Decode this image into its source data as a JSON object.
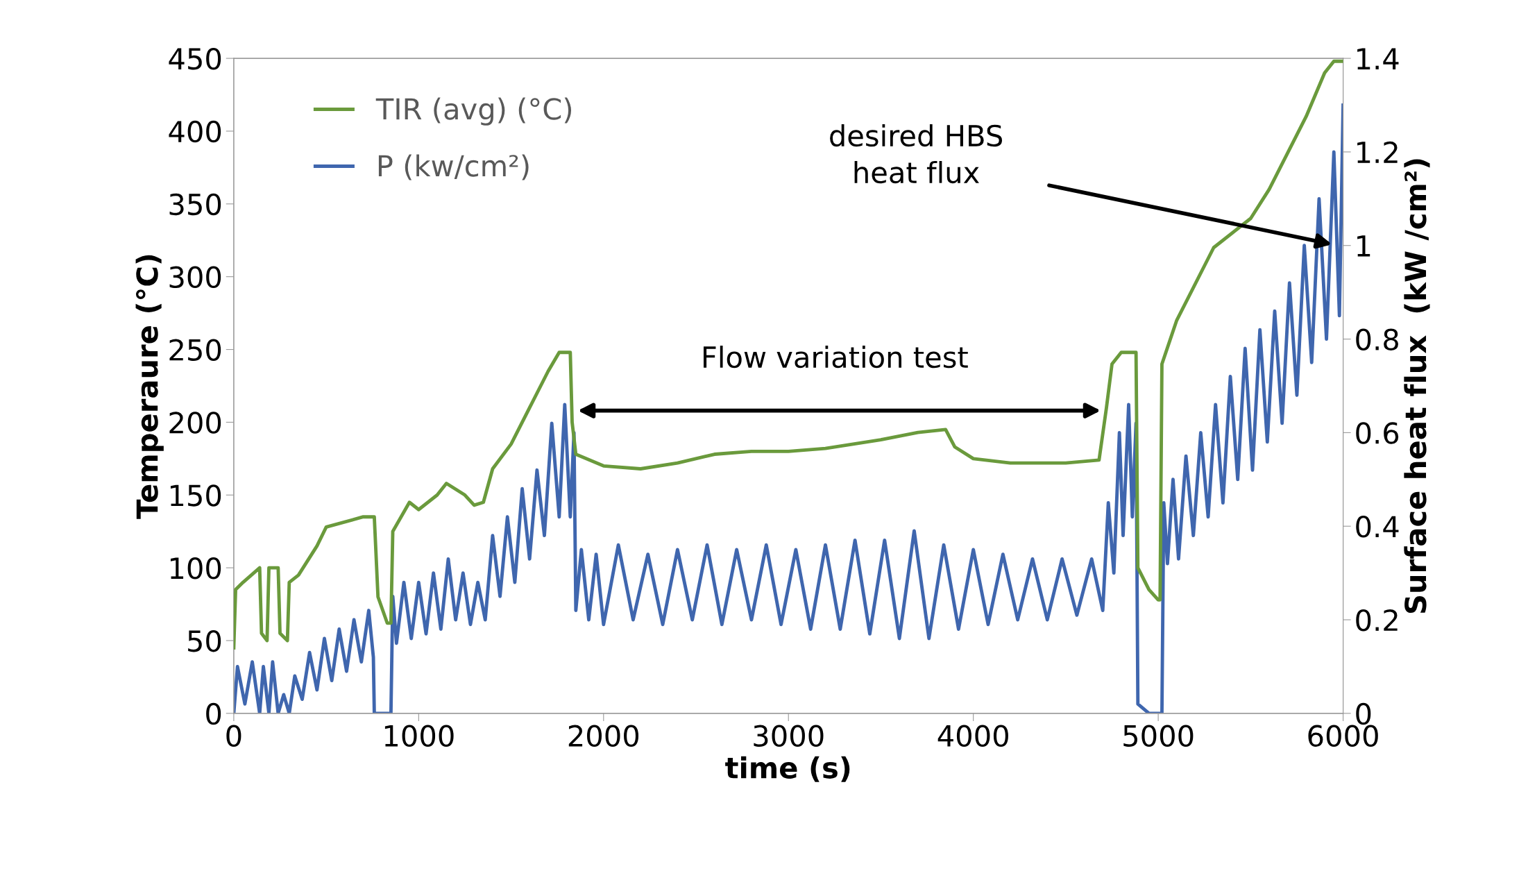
{
  "chart_data": {
    "type": "line",
    "xlabel": "time (s)",
    "ylabel": "Temperaure (°C)",
    "y2label": "Surface heat flux  (kW /cm²)",
    "xlim": [
      0,
      6000
    ],
    "xticks": [
      0,
      1000,
      2000,
      3000,
      4000,
      5000,
      6000
    ],
    "ylim": [
      0,
      450
    ],
    "yticks": [
      0,
      50,
      100,
      150,
      200,
      250,
      300,
      350,
      400,
      450
    ],
    "y2lim": [
      0,
      1.4
    ],
    "y2ticks": [
      0,
      0.2,
      0.4,
      0.6,
      0.8,
      1,
      1.2,
      1.4
    ],
    "grid": false,
    "legend": "top left",
    "marker": "none",
    "line_style": "solid",
    "annotations": [
      "desired HBS\nheat flux",
      "Flow variation test"
    ],
    "series": [
      {
        "name": "TIR (avg) (°C)",
        "color": "#6a9a3c",
        "x": [
          0,
          10,
          50,
          140,
          150,
          180,
          190,
          240,
          250,
          290,
          300,
          350,
          450,
          500,
          700,
          760,
          780,
          830,
          850,
          860,
          950,
          1000,
          1100,
          1150,
          1250,
          1300,
          1350,
          1400,
          1500,
          1600,
          1700,
          1760,
          1820,
          1830,
          1850,
          2000,
          2200,
          2400,
          2600,
          2800,
          3000,
          3200,
          3500,
          3700,
          3850,
          3900,
          4000,
          4200,
          4500,
          4680,
          4720,
          4750,
          4800,
          4880,
          4890,
          4950,
          5000,
          5010,
          5020,
          5100,
          5300,
          5500,
          5600,
          5700,
          5800,
          5900,
          5950,
          6000
        ],
        "values": [
          45,
          85,
          90,
          100,
          55,
          50,
          100,
          100,
          55,
          50,
          90,
          95,
          115,
          128,
          135,
          135,
          80,
          62,
          62,
          125,
          145,
          140,
          150,
          158,
          150,
          143,
          145,
          168,
          185,
          210,
          235,
          248,
          248,
          200,
          178,
          170,
          168,
          172,
          178,
          180,
          180,
          182,
          188,
          193,
          195,
          183,
          175,
          172,
          172,
          174,
          210,
          240,
          248,
          248,
          100,
          85,
          78,
          78,
          240,
          270,
          320,
          340,
          360,
          385,
          410,
          440,
          448,
          448
        ]
      },
      {
        "name": "P (kw/cm²)",
        "color": "#3f66ae",
        "axis": "y2",
        "x": [
          0,
          20,
          60,
          100,
          140,
          160,
          190,
          210,
          240,
          270,
          300,
          330,
          370,
          410,
          450,
          490,
          530,
          570,
          610,
          650,
          690,
          730,
          755,
          760,
          850,
          860,
          880,
          920,
          960,
          1000,
          1040,
          1080,
          1120,
          1160,
          1200,
          1240,
          1280,
          1320,
          1360,
          1400,
          1440,
          1480,
          1520,
          1560,
          1600,
          1640,
          1680,
          1720,
          1760,
          1790,
          1820,
          1840,
          1850,
          1880,
          1920,
          1960,
          2000,
          2080,
          2160,
          2240,
          2320,
          2400,
          2480,
          2560,
          2640,
          2720,
          2800,
          2880,
          2960,
          3040,
          3120,
          3200,
          3280,
          3360,
          3440,
          3520,
          3600,
          3680,
          3760,
          3840,
          3920,
          4000,
          4080,
          4160,
          4240,
          4320,
          4400,
          4480,
          4560,
          4640,
          4700,
          4730,
          4760,
          4790,
          4810,
          4840,
          4860,
          4880,
          4890,
          4950,
          5020,
          5030,
          5050,
          5080,
          5110,
          5150,
          5190,
          5230,
          5270,
          5310,
          5350,
          5390,
          5430,
          5470,
          5510,
          5550,
          5590,
          5630,
          5670,
          5710,
          5750,
          5790,
          5830,
          5870,
          5910,
          5950,
          5980,
          6000
        ],
        "values": [
          0,
          0.1,
          0.02,
          0.11,
          0,
          0.1,
          0,
          0.11,
          0,
          0.04,
          0,
          0.08,
          0.03,
          0.13,
          0.05,
          0.16,
          0.07,
          0.18,
          0.09,
          0.2,
          0.11,
          0.22,
          0.12,
          0,
          0,
          0.25,
          0.15,
          0.28,
          0.16,
          0.28,
          0.17,
          0.3,
          0.18,
          0.33,
          0.2,
          0.3,
          0.19,
          0.28,
          0.2,
          0.38,
          0.25,
          0.42,
          0.28,
          0.48,
          0.33,
          0.52,
          0.38,
          0.62,
          0.42,
          0.66,
          0.42,
          0.6,
          0.22,
          0.35,
          0.2,
          0.34,
          0.19,
          0.36,
          0.2,
          0.34,
          0.19,
          0.35,
          0.2,
          0.36,
          0.19,
          0.35,
          0.2,
          0.36,
          0.19,
          0.35,
          0.18,
          0.36,
          0.18,
          0.37,
          0.17,
          0.37,
          0.16,
          0.39,
          0.16,
          0.36,
          0.18,
          0.35,
          0.19,
          0.34,
          0.2,
          0.33,
          0.2,
          0.33,
          0.21,
          0.33,
          0.22,
          0.45,
          0.3,
          0.6,
          0.38,
          0.66,
          0.42,
          0.62,
          0.02,
          0,
          0,
          0.45,
          0.32,
          0.5,
          0.33,
          0.55,
          0.38,
          0.6,
          0.42,
          0.66,
          0.45,
          0.72,
          0.5,
          0.78,
          0.52,
          0.82,
          0.58,
          0.86,
          0.62,
          0.92,
          0.68,
          1,
          0.75,
          1.1,
          0.8,
          1.2,
          0.85,
          1.3
        ]
      }
    ]
  }
}
